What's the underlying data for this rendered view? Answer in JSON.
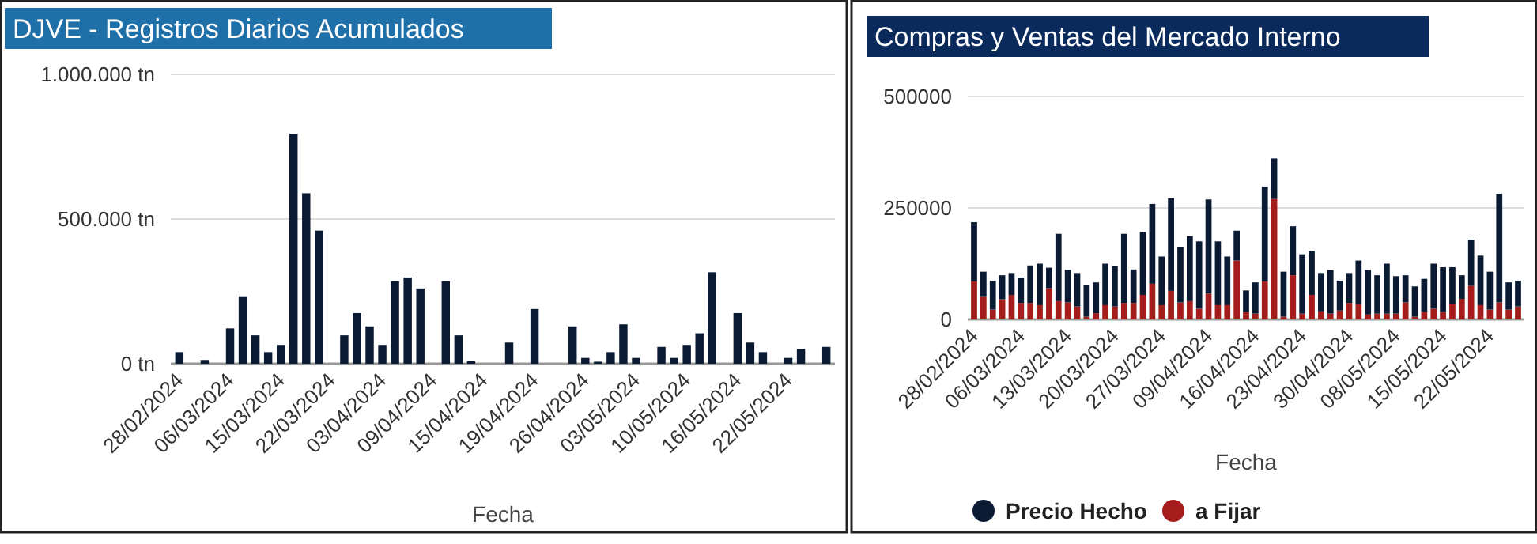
{
  "chart_data": [
    {
      "type": "bar",
      "title": "DJVE - Registros Diarios Acumulados",
      "xlabel": "Fecha",
      "categories": [
        "28/02/2024",
        null,
        null,
        null,
        "06/03/2024",
        null,
        null,
        null,
        "15/03/2024",
        null,
        null,
        null,
        "22/03/2024",
        null,
        null,
        null,
        "03/04/2024",
        null,
        null,
        null,
        "09/04/2024",
        null,
        null,
        null,
        "15/04/2024",
        null,
        null,
        null,
        "19/04/2024",
        null,
        null,
        null,
        "26/04/2024",
        null,
        null,
        null,
        "03/05/2024",
        null,
        null,
        null,
        "10/05/2024",
        null,
        null,
        null,
        "16/05/2024",
        null,
        null,
        null,
        "22/05/2024",
        null,
        null,
        null
      ],
      "series": [
        {
          "color": "#0b1a33",
          "values": [
            40000,
            0,
            13000,
            0,
            122000,
            233000,
            98000,
            40000,
            65000,
            795000,
            589000,
            460000,
            0,
            98000,
            175000,
            129000,
            65000,
            285000,
            298000,
            260000,
            0,
            285000,
            98000,
            9000,
            0,
            0,
            73000,
            0,
            189000,
            0,
            0,
            129000,
            20000,
            7000,
            40000,
            136000,
            20000,
            0,
            58000,
            20000,
            65000,
            105000,
            316000,
            0,
            175000,
            73000,
            40000,
            0,
            20000,
            51000,
            0,
            58000
          ]
        }
      ],
      "ylim": [
        0,
        1000000
      ],
      "yticks": [
        {
          "value": 0,
          "label": "0 tn"
        },
        {
          "value": 500000,
          "label": "500.000 tn"
        },
        {
          "value": 1000000,
          "label": "1.000.000 tn"
        }
      ],
      "grid": "y",
      "legend": false
    },
    {
      "type": "bar",
      "title": "Compras y Ventas del Mercado Interno",
      "xlabel": "Fecha",
      "stacked": true,
      "categories": [
        "28/02/2024",
        null,
        null,
        null,
        null,
        "06/03/2024",
        null,
        null,
        null,
        null,
        "13/03/2024",
        null,
        null,
        null,
        null,
        "20/03/2024",
        null,
        null,
        null,
        null,
        "27/03/2024",
        null,
        null,
        null,
        null,
        "09/04/2024",
        null,
        null,
        null,
        null,
        "16/04/2024",
        null,
        null,
        null,
        null,
        "23/04/2024",
        null,
        null,
        null,
        null,
        "30/04/2024",
        null,
        null,
        null,
        null,
        "08/05/2024",
        null,
        null,
        null,
        null,
        "15/05/2024",
        null,
        null,
        null,
        null,
        "22/05/2024",
        null,
        null,
        null
      ],
      "series": [
        {
          "name": "a Fijar",
          "color": "#a51c1c",
          "values": [
            85000,
            52000,
            22000,
            45000,
            55000,
            37000,
            37000,
            32000,
            70000,
            41000,
            38000,
            29000,
            6000,
            14000,
            32000,
            29000,
            37000,
            37000,
            55000,
            80000,
            32000,
            64000,
            38000,
            41000,
            24000,
            58000,
            32000,
            32000,
            132000,
            17000,
            13000,
            85000,
            270000,
            6000,
            99000,
            13000,
            55000,
            18000,
            13000,
            20000,
            37000,
            34000,
            11000,
            13000,
            13000,
            13000,
            38000,
            6000,
            17000,
            24000,
            17000,
            34000,
            46000,
            75000,
            32000,
            22000,
            38000,
            22000,
            29000
          ]
        },
        {
          "name": "Precio Hecho",
          "color": "#0b1a33",
          "values": [
            133000,
            55000,
            65000,
            54000,
            49000,
            57000,
            84000,
            93000,
            46000,
            151000,
            73000,
            75000,
            72000,
            69000,
            93000,
            91000,
            155000,
            75000,
            141000,
            179000,
            109000,
            208000,
            125000,
            146000,
            151000,
            211000,
            143000,
            109000,
            67000,
            48000,
            70000,
            213000,
            91000,
            101000,
            110000,
            133000,
            99000,
            86000,
            98000,
            67000,
            67000,
            98000,
            100000,
            86000,
            112000,
            84000,
            61000,
            68000,
            74000,
            101000,
            100000,
            83000,
            53000,
            104000,
            111000,
            85000,
            244000,
            61000,
            58000
          ]
        }
      ],
      "ylim": [
        0,
        500000
      ],
      "yticks": [
        0,
        250000,
        500000
      ],
      "grid": "y",
      "legend": "bottom"
    }
  ]
}
